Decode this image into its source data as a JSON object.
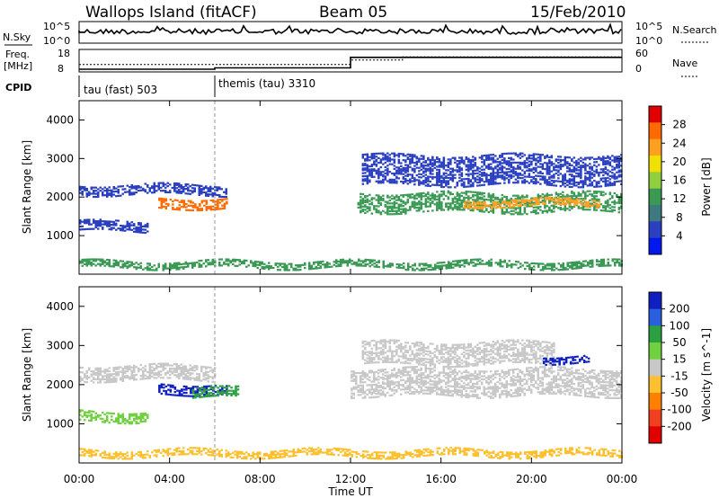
{
  "header": {
    "station": "Wallops Island (fitACF)",
    "beam": "Beam 05",
    "date": "15/Feb/2010"
  },
  "top_panels": {
    "nsky_label": "N.Sky",
    "nsky_ticks": [
      "10^5",
      "10^0"
    ],
    "nsearch_label": "N.Search",
    "nsearch_ticks": [
      "10^5",
      "10^0"
    ],
    "freq_label_1": "Freq.",
    "freq_label_2": "[MHz]",
    "freq_ticks": [
      "18",
      "8"
    ],
    "nave_label": "Nave",
    "nave_ticks": [
      "60",
      "0"
    ],
    "cpid_label": "CPID",
    "cpid_segments": [
      {
        "label": "tau (fast) 503",
        "start_hour": 0
      },
      {
        "label": "themis (tau) 3310",
        "start_hour": 6
      }
    ],
    "freq_profile": [
      [
        0,
        9.2
      ],
      [
        6,
        9.2
      ],
      [
        6,
        9.8
      ],
      [
        12,
        9.8
      ],
      [
        12,
        14.5
      ],
      [
        24,
        14.5
      ]
    ],
    "nave_profile": [
      [
        0,
        20
      ],
      [
        12,
        20
      ],
      [
        12,
        32
      ],
      [
        14.3,
        32
      ],
      [
        14.3,
        40
      ],
      [
        24,
        40
      ]
    ]
  },
  "chart_data": [
    {
      "type": "heatmap",
      "name": "power",
      "ylabel": "Slant Range [km]",
      "ylim": [
        0,
        4500
      ],
      "yticks": [
        "1000",
        "2000",
        "3000",
        "4000"
      ],
      "xlim_hours": [
        0,
        24
      ],
      "colorbar_label": "Power [dB]",
      "colorbar_ticks": [
        "28",
        "24",
        "20",
        "16",
        "12",
        "8",
        "4"
      ],
      "colorbar_colors": [
        "#e00000",
        "#ff6a00",
        "#ffa020",
        "#f0e000",
        "#90d040",
        "#3a9a55",
        "#3c7a80",
        "#2a40c0",
        "#0018f0"
      ],
      "bands": [
        {
          "t0": 0.0,
          "t1": 6.5,
          "r0": 2050,
          "r1": 2300,
          "color": "#2a40c0"
        },
        {
          "t0": 3.5,
          "t1": 6.5,
          "r0": 1700,
          "r1": 1950,
          "color": "#ff6a00"
        },
        {
          "t0": 0.0,
          "t1": 3.0,
          "r0": 1100,
          "r1": 1350,
          "color": "#2a40c0"
        },
        {
          "t0": 12.3,
          "t1": 24.0,
          "r0": 1600,
          "r1": 2100,
          "color": "#3a9a55"
        },
        {
          "t0": 17.0,
          "t1": 23.0,
          "r0": 1750,
          "r1": 1950,
          "color": "#ffa020"
        },
        {
          "t0": 12.5,
          "t1": 24.0,
          "r0": 2300,
          "r1": 3100,
          "color": "#2a40c0"
        },
        {
          "t0": 0.0,
          "t1": 24.0,
          "r0": 150,
          "r1": 350,
          "color": "#3a9a55"
        }
      ]
    },
    {
      "type": "heatmap",
      "name": "velocity",
      "ylabel": "Slant Range [km]",
      "ylim": [
        0,
        4500
      ],
      "yticks": [
        "1000",
        "2000",
        "3000",
        "4000"
      ],
      "xlim_hours": [
        0,
        24
      ],
      "xlabel": "Time UT",
      "xticks": [
        "00:00",
        "04:00",
        "08:00",
        "12:00",
        "16:00",
        "20:00",
        "00:00"
      ],
      "colorbar_label": "Velocity [m s^-1]",
      "colorbar_ticks": [
        "200",
        "100",
        "50",
        "15",
        "-15",
        "-50",
        "-100",
        "-200"
      ],
      "colorbar_colors": [
        "#1020c0",
        "#2a60e0",
        "#2aa040",
        "#70d040",
        "#c8c8c8",
        "#ffc030",
        "#ff8000",
        "#f04020",
        "#e00000"
      ],
      "bands": [
        {
          "t0": 0.0,
          "t1": 6.0,
          "r0": 2100,
          "r1": 2500,
          "color": "#c8c8c8"
        },
        {
          "t0": 3.5,
          "t1": 6.5,
          "r0": 1750,
          "r1": 2000,
          "color": "#1020c0"
        },
        {
          "t0": 5.0,
          "t1": 7.0,
          "r0": 1650,
          "r1": 1900,
          "color": "#2aa040"
        },
        {
          "t0": 0.0,
          "t1": 3.0,
          "r0": 1050,
          "r1": 1300,
          "color": "#70d040"
        },
        {
          "t0": 12.0,
          "t1": 24.0,
          "r0": 1700,
          "r1": 2400,
          "color": "#c8c8c8"
        },
        {
          "t0": 12.5,
          "t1": 21.0,
          "r0": 2500,
          "r1": 3100,
          "color": "#c8c8c8"
        },
        {
          "t0": 20.5,
          "t1": 22.5,
          "r0": 2550,
          "r1": 2750,
          "color": "#1020c0"
        },
        {
          "t0": 0.0,
          "t1": 24.0,
          "r0": 150,
          "r1": 350,
          "color": "#ffc030"
        }
      ]
    }
  ]
}
